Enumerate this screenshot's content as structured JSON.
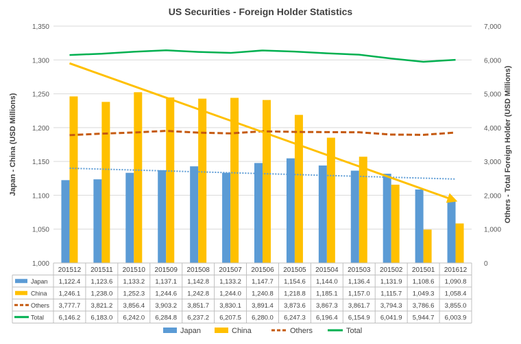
{
  "chart_data": {
    "type": "bar",
    "title": "US Securities - Foreign Holder Statistics",
    "ylabel": "Japan - China (USD Millions)",
    "y2label": "Others - Total Foreign Holder (USD Millions)",
    "ylim": [
      1000,
      1350
    ],
    "yticks": [
      "1,000",
      "1,050",
      "1,100",
      "1,150",
      "1,200",
      "1,250",
      "1,300",
      "1,350"
    ],
    "y2lim": [
      0,
      7000
    ],
    "y2ticks": [
      "0",
      "1,000",
      "2,000",
      "3,000",
      "4,000",
      "5,000",
      "6,000",
      "7,000"
    ],
    "categories": [
      "201512",
      "201511",
      "201510",
      "201509",
      "201508",
      "201507",
      "201506",
      "201505",
      "201504",
      "201503",
      "201502",
      "201501",
      "201612"
    ],
    "grid": true,
    "legend_position": "bottom",
    "series": [
      {
        "name": "Japan",
        "type": "bar",
        "axis": "left",
        "color": "#5b9bd5",
        "values": [
          1122.4,
          1123.6,
          1133.2,
          1137.1,
          1142.8,
          1133.2,
          1147.7,
          1154.6,
          1144.0,
          1136.4,
          1131.9,
          1108.6,
          1090.8
        ],
        "labels": [
          "1,122.4",
          "1,123.6",
          "1,133.2",
          "1,137.1",
          "1,142.8",
          "1,133.2",
          "1,147.7",
          "1,154.6",
          "1,144.0",
          "1,136.4",
          "1,131.9",
          "1,108.6",
          "1,090.8"
        ]
      },
      {
        "name": "China",
        "type": "bar",
        "axis": "left",
        "color": "#ffc000",
        "values": [
          1246.1,
          1238.0,
          1252.3,
          1244.6,
          1242.8,
          1244.0,
          1240.8,
          1218.8,
          1185.1,
          1157.0,
          1115.7,
          1049.3,
          1058.4
        ],
        "labels": [
          "1,246.1",
          "1,238.0",
          "1,252.3",
          "1,244.6",
          "1,242.8",
          "1,244.0",
          "1,240.8",
          "1,218.8",
          "1,185.1",
          "1,157.0",
          "1,115.7",
          "1,049.3",
          "1,058.4"
        ]
      },
      {
        "name": "Others",
        "type": "line",
        "axis": "right",
        "color": "#c55a11",
        "dash": true,
        "values": [
          3777.7,
          3821.2,
          3856.4,
          3903.2,
          3851.7,
          3830.1,
          3891.4,
          3873.6,
          3867.3,
          3861.7,
          3794.3,
          3786.6,
          3855.0
        ],
        "labels": [
          "3,777.7",
          "3,821.2",
          "3,856.4",
          "3,903.2",
          "3,851.7",
          "3,830.1",
          "3,891.4",
          "3,873.6",
          "3,867.3",
          "3,861.7",
          "3,794.3",
          "3,786.6",
          "3,855.0"
        ]
      },
      {
        "name": "Total",
        "type": "line",
        "axis": "right",
        "color": "#00b050",
        "values": [
          6146.2,
          6183.0,
          6242.0,
          6284.8,
          6237.2,
          6207.5,
          6280.0,
          6247.3,
          6196.4,
          6154.9,
          6041.9,
          5944.7,
          6003.9
        ],
        "labels": [
          "6,146.2",
          "6,183.0",
          "6,242.0",
          "6,284.8",
          "6,237.2",
          "6,207.5",
          "6,280.0",
          "6,247.3",
          "6,196.4",
          "6,154.9",
          "6,041.9",
          "5,944.7",
          "6,003.9"
        ]
      }
    ],
    "trendlines": [
      {
        "of": "Japan",
        "style": "dotted",
        "color": "#5b9bd5",
        "start": 1140.0,
        "end": 1124.0
      },
      {
        "of": "China",
        "style": "arrow",
        "color": "#ffc000",
        "start": 1295.0,
        "end": 1092.0
      }
    ]
  }
}
